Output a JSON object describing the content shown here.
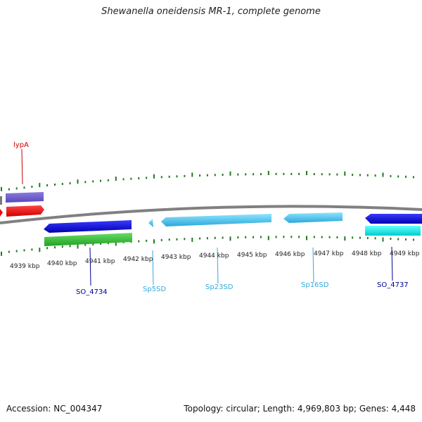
{
  "title": "Shewanella oneidensis MR-1, complete genome",
  "footer": {
    "accession": "Accession: NC_004347",
    "summary": "Topology: circular; Length: 4,969,803 bp; Genes: 4,448"
  },
  "colors": {
    "backbone": "#808080",
    "tick": "#1f7a1f",
    "red_label": "#cc0000",
    "blue_label": "#000099",
    "cyan_label": "#33aadd"
  },
  "axis_labels": [
    "4939 kbp",
    "4940 kbp",
    "4941 kbp",
    "4942 kbp",
    "4943 kbp",
    "4944 kbp",
    "4945 kbp",
    "4946 kbp",
    "4947 kbp",
    "4948 kbp",
    "4949 kbp"
  ],
  "gene_labels": {
    "lypA": "lypA",
    "SO_4734": "SO_4734",
    "Sp5SD": "Sp5SD",
    "Sp23SD": "Sp23SD",
    "Sp16SD": "Sp16SD",
    "SO_4737": "SO_4737"
  }
}
